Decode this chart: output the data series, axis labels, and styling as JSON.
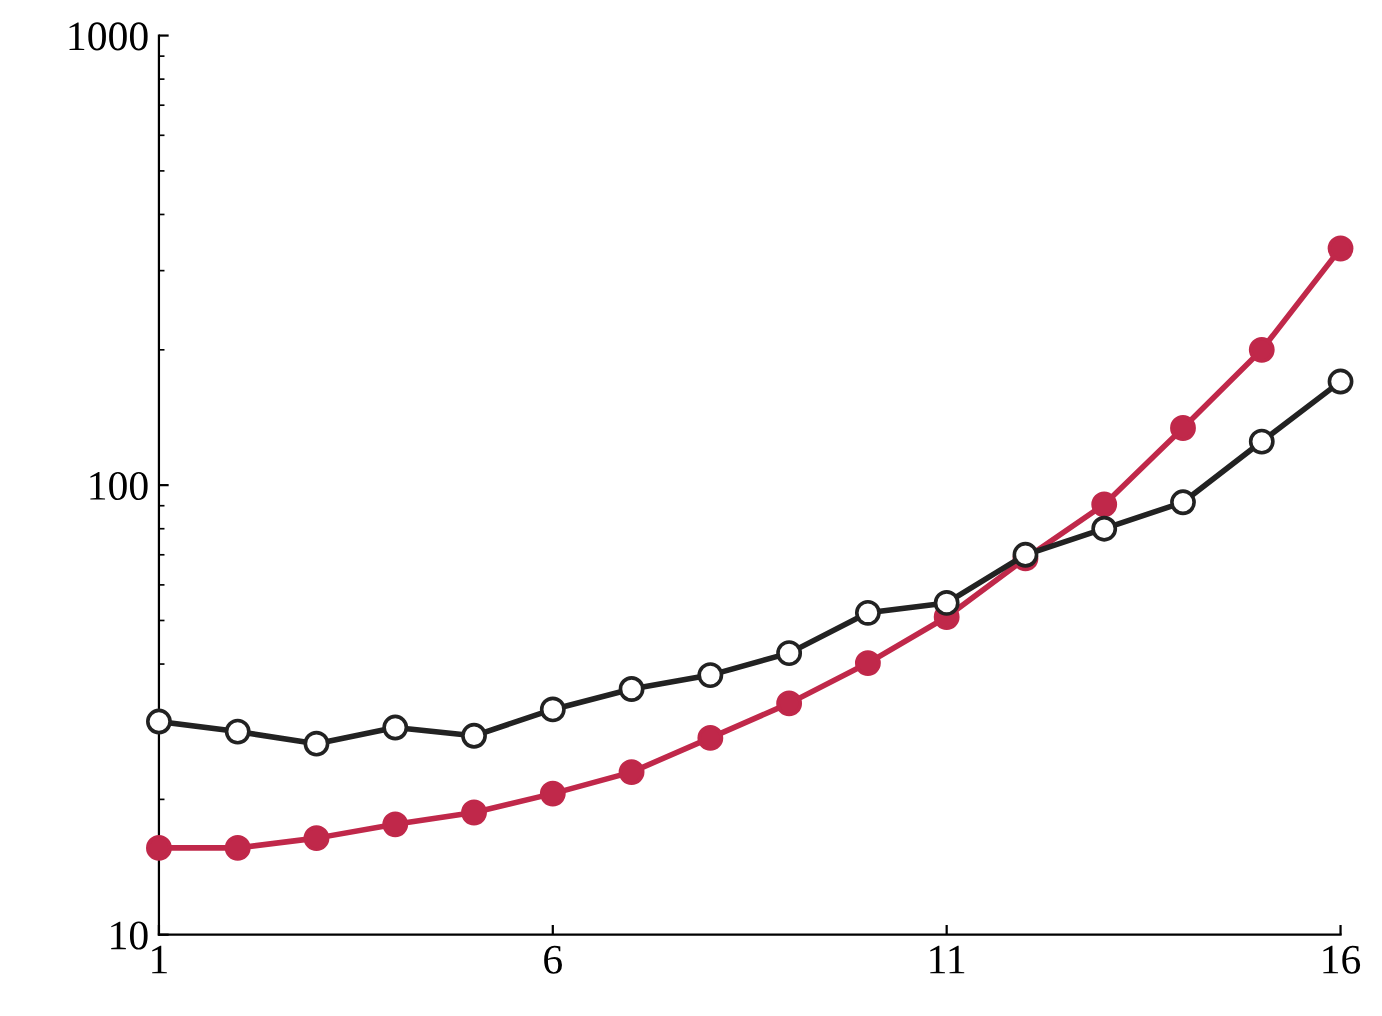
{
  "chart_data": {
    "type": "line",
    "x": [
      1,
      2,
      3,
      4,
      5,
      6,
      7,
      8,
      9,
      10,
      11,
      12,
      13,
      14,
      15,
      16
    ],
    "series": [
      {
        "color": "#222222",
        "marker": "circle",
        "values": [
          29.8,
          28.3,
          26.6,
          28.9,
          27.7,
          31.7,
          35.2,
          37.8,
          42.3,
          52,
          54.7,
          70,
          80,
          91.6,
          125,
          170
        ]
      },
      {
        "color": "#c0284a",
        "marker": "circle",
        "values": [
          15.6,
          15.6,
          16.4,
          17.6,
          18.7,
          20.6,
          23.0,
          27.4,
          32.7,
          40.2,
          50.9,
          68.7,
          90.6,
          134,
          200,
          336
        ]
      }
    ],
    "log": "y",
    "xlim": [
      1,
      16
    ],
    "ylim": [
      10,
      1000
    ],
    "xticks": [
      1,
      6,
      11,
      16
    ],
    "yticks": [
      10,
      100,
      1000
    ],
    "grid": false
  }
}
